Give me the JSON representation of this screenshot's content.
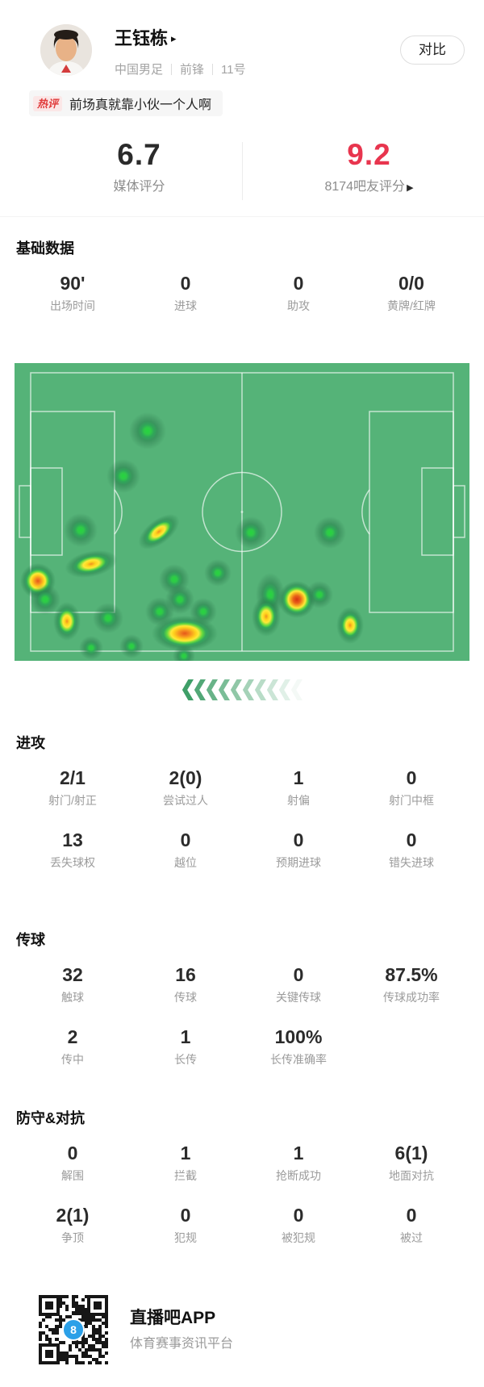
{
  "header": {
    "name": "王钰栋",
    "name_arrow": "▸",
    "team": "中国男足",
    "position": "前锋",
    "shirt_number": "11号",
    "compare_label": "对比"
  },
  "hot_comment": {
    "tag": "热评",
    "text": "前场真就靠小伙一个人啊"
  },
  "ratings": {
    "media_score": "6.7",
    "media_label": "媒体评分",
    "fan_score": "9.2",
    "fan_label": "8174吧友评分",
    "fan_arrow": "▶"
  },
  "sections": {
    "basic": {
      "title": "基础数据",
      "rows": [
        [
          {
            "v": "90'",
            "l": "出场时间"
          },
          {
            "v": "0",
            "l": "进球"
          },
          {
            "v": "0",
            "l": "助攻"
          },
          {
            "v": "0/0",
            "l": "黄牌/红牌"
          }
        ]
      ]
    },
    "attack": {
      "title": "进攻",
      "rows": [
        [
          {
            "v": "2/1",
            "l": "射门/射正"
          },
          {
            "v": "2(0)",
            "l": "尝试过人"
          },
          {
            "v": "1",
            "l": "射偏"
          },
          {
            "v": "0",
            "l": "射门中框"
          }
        ],
        [
          {
            "v": "13",
            "l": "丢失球权"
          },
          {
            "v": "0",
            "l": "越位"
          },
          {
            "v": "0",
            "l": "预期进球"
          },
          {
            "v": "0",
            "l": "错失进球"
          }
        ]
      ]
    },
    "passing": {
      "title": "传球",
      "rows": [
        [
          {
            "v": "32",
            "l": "触球"
          },
          {
            "v": "16",
            "l": "传球"
          },
          {
            "v": "0",
            "l": "关键传球"
          },
          {
            "v": "87.5%",
            "l": "传球成功率"
          }
        ],
        [
          {
            "v": "2",
            "l": "传中"
          },
          {
            "v": "1",
            "l": "长传"
          },
          {
            "v": "100%",
            "l": "长传准确率"
          },
          {
            "v": "",
            "l": ""
          }
        ]
      ]
    },
    "defense": {
      "title": "防守&对抗",
      "rows": [
        [
          {
            "v": "0",
            "l": "解围"
          },
          {
            "v": "1",
            "l": "拦截"
          },
          {
            "v": "1",
            "l": "抢断成功"
          },
          {
            "v": "6(1)",
            "l": "地面对抗"
          }
        ],
        [
          {
            "v": "2(1)",
            "l": "争顶"
          },
          {
            "v": "0",
            "l": "犯规"
          },
          {
            "v": "0",
            "l": "被犯规"
          },
          {
            "v": "0",
            "l": "被过"
          }
        ]
      ]
    }
  },
  "heatmap": {
    "field_color": "#55b378",
    "arrow_count": 10,
    "spot_legend": {
      "g": "low-intensity",
      "y": "medium-intensity",
      "o": "high-intensity",
      "r": "highest-intensity"
    },
    "spots": [
      [
        29.3,
        22.8,
        "g",
        46,
        46,
        0
      ],
      [
        23.9,
        37.9,
        "g",
        42,
        42,
        0
      ],
      [
        14.5,
        56.1,
        "g",
        42,
        42,
        0
      ],
      [
        31.7,
        56.6,
        "y",
        60,
        30,
        -38
      ],
      [
        44.7,
        70.5,
        "g",
        34,
        34,
        0
      ],
      [
        52.0,
        56.9,
        "g",
        40,
        40,
        0
      ],
      [
        69.3,
        56.9,
        "g",
        40,
        40,
        0
      ],
      [
        16.8,
        67.5,
        "y",
        66,
        32,
        -12
      ],
      [
        5.1,
        73.2,
        "o",
        44,
        44,
        0
      ],
      [
        6.7,
        79.4,
        "g",
        38,
        38,
        0
      ],
      [
        11.5,
        86.7,
        "y",
        34,
        48,
        0
      ],
      [
        20.6,
        85.6,
        "g",
        38,
        38,
        0
      ],
      [
        16.8,
        95.7,
        "g",
        30,
        30,
        0
      ],
      [
        25.7,
        95.1,
        "g",
        30,
        30,
        0
      ],
      [
        35.1,
        72.6,
        "g",
        38,
        38,
        0
      ],
      [
        31.9,
        83.5,
        "g",
        36,
        36,
        0
      ],
      [
        36.3,
        79.4,
        "g",
        36,
        36,
        0
      ],
      [
        41.5,
        83.5,
        "g",
        34,
        34,
        0
      ],
      [
        37.4,
        90.8,
        "o",
        82,
        44,
        0
      ],
      [
        37.2,
        98.4,
        "g",
        28,
        28,
        0
      ],
      [
        56.2,
        77.8,
        "g",
        36,
        54,
        0
      ],
      [
        62.1,
        79.4,
        "r",
        46,
        46,
        0
      ],
      [
        67.0,
        77.8,
        "g",
        34,
        34,
        0
      ],
      [
        55.3,
        85.1,
        "y",
        36,
        50,
        0
      ],
      [
        73.8,
        88.1,
        "y",
        34,
        46,
        0
      ]
    ]
  },
  "footer": {
    "app_name": "直播吧APP",
    "app_desc": "体育赛事资讯平台",
    "qr_badge": "8"
  },
  "colors": {
    "fan_score_red": "#e8354e",
    "hot_tag_red": "#e03c3c",
    "field_green": "#55b378",
    "chevron_green": "#3f9f68",
    "qr_badge_blue": "#2ba0e8"
  }
}
